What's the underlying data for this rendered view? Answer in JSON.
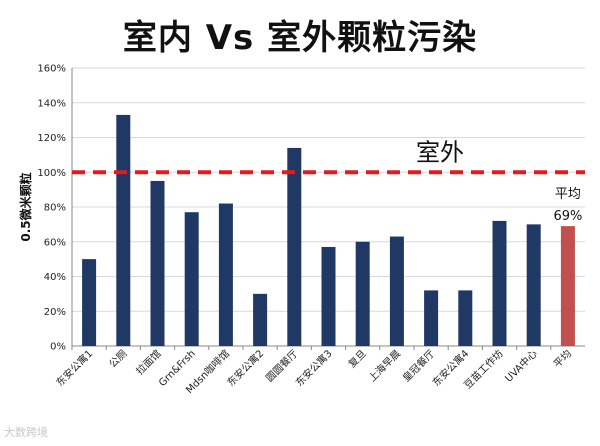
{
  "chart_data": {
    "type": "bar",
    "title": "室内 Vs 室外颗粒污染",
    "ylabel": "0.5微米颗粒",
    "xlabel": "",
    "ylim": [
      0,
      160
    ],
    "yticks": [
      "0%",
      "20%",
      "40%",
      "60%",
      "80%",
      "100%",
      "120%",
      "140%",
      "160%"
    ],
    "categories": [
      "东安公寓1",
      "公厕",
      "拉面馆",
      "Grn&Frsh",
      "Mdsn咖啡馆",
      "东安公寓2",
      "圆圆餐厅",
      "东安公寓3",
      "复旦",
      "上海早晨",
      "皇冠餐厅",
      "东安公寓4",
      "豆苗工作坊",
      "UVA中心",
      "平均"
    ],
    "values": [
      50,
      133,
      95,
      77,
      82,
      30,
      114,
      57,
      60,
      63,
      32,
      32,
      72,
      70,
      69
    ],
    "colors": {
      "bar": "#1f3864",
      "average_bar": "#c0504d",
      "reference_line": "#e41a1c",
      "grid": "#d9d9d9"
    },
    "reference_line": {
      "value": 100,
      "label": "室外"
    },
    "average_label": "平均",
    "average_value_label": "69%",
    "grid": true
  },
  "watermark": "大数跨境"
}
